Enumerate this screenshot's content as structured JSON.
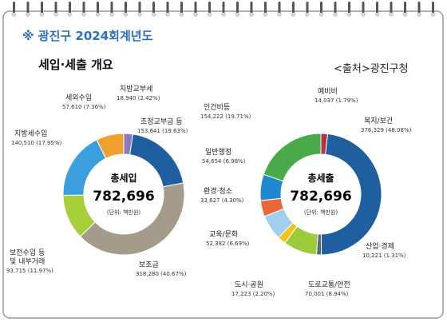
{
  "header": {
    "title": "※ 광진구 2024회계년도",
    "subtitle": "세입·세출 개요",
    "source": "<출처>광진구청"
  },
  "chart_data": [
    {
      "type": "pie",
      "center_title": "총세입",
      "total": {
        "value": 782696,
        "label": "782,696"
      },
      "unit": "(단위: 백만원)",
      "categories": [
        "지방교부세",
        "조정교부금 등",
        "보조금",
        "보전수입 등\n및 내부거래",
        "지방세수입",
        "세외수입"
      ],
      "values": [
        18940,
        153641,
        318280,
        93715,
        140510,
        57610
      ],
      "value_labels": [
        "18,940 (2.42%)",
        "153,641 (19.63%)",
        "318,280 (40.67%)",
        "93,715 (11.97%)",
        "140,510 (17.95%)",
        "57,610 (7.36%)"
      ],
      "colors": [
        "#8a7bbf",
        "#1f5fa0",
        "#a59b8a",
        "#a6cf3a",
        "#3a9fdc",
        "#f0a030"
      ]
    },
    {
      "type": "pie",
      "center_title": "총세출",
      "total": {
        "value": 782696,
        "label": "782,696"
      },
      "unit": "(단위: 백만원)",
      "categories": [
        "예비비",
        "복지/보건",
        "산업·경제",
        "도로교통/안전",
        "도시·공원",
        "교육/문화",
        "환경·청소",
        "일반행정",
        "인건비등"
      ],
      "values": [
        14037,
        376329,
        10221,
        70001,
        17223,
        52382,
        33627,
        54654,
        154222
      ],
      "value_labels": [
        "14,037 (1.79%)",
        "376,329 (48.08%)",
        "10,221 (1.31%)",
        "70,001 (8.94%)",
        "17,223 (2.20%)",
        "52,382 (6.69%)",
        "33,627 (4.30%)",
        "54,654 (6.98%)",
        "154,222 (19.71%)"
      ],
      "colors": [
        "#b5334a",
        "#1f5fa0",
        "#5b6b7c",
        "#9ccc3c",
        "#f0c419",
        "#9fd0ef",
        "#e8683a",
        "#1e88d0",
        "#4aaa4a"
      ]
    }
  ]
}
